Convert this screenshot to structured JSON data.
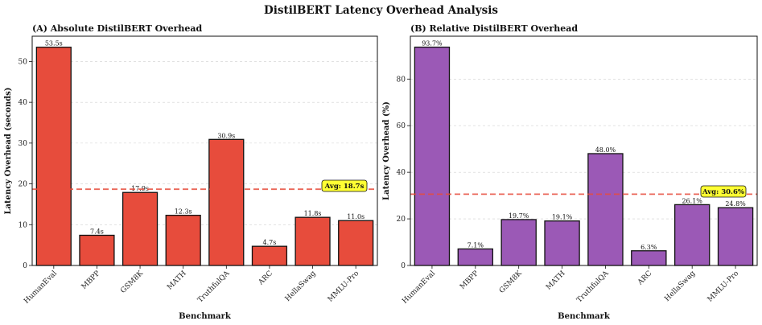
{
  "figure": {
    "title": "DistilBERT Latency Overhead Analysis"
  },
  "chart_data": [
    {
      "type": "bar",
      "title": "(A) Absolute DistilBERT Overhead",
      "xlabel": "Benchmark",
      "ylabel": "Latency Overhead (seconds)",
      "categories": [
        "HumanEval",
        "MBPP",
        "GSM8K",
        "MATH",
        "TruthfulQA",
        "ARC",
        "HellaSwag",
        "MMLU-Pro"
      ],
      "values": [
        53.5,
        7.4,
        17.9,
        12.3,
        30.9,
        4.7,
        11.8,
        11.0
      ],
      "labels": [
        "53.5s",
        "7.4s",
        "17.9s",
        "12.3s",
        "30.9s",
        "4.7s",
        "11.8s",
        "11.0s"
      ],
      "ylim": [
        0,
        56.2
      ],
      "yticks": [
        0,
        10,
        20,
        30,
        40,
        50
      ],
      "bar_color": "#e74c3c",
      "average": {
        "value": 18.7,
        "label": "Avg: 18.7s",
        "color": "#e74c3c"
      },
      "grid": "y-dashed"
    },
    {
      "type": "bar",
      "title": "(B) Relative DistilBERT Overhead",
      "xlabel": "Benchmark",
      "ylabel": "Latency Overhead (%)",
      "categories": [
        "HumanEval",
        "MBPP",
        "GSM8K",
        "MATH",
        "TruthfulQA",
        "ARC",
        "HellaSwag",
        "MMLU-Pro"
      ],
      "values": [
        93.7,
        7.1,
        19.7,
        19.1,
        48.0,
        6.3,
        26.1,
        24.8
      ],
      "labels": [
        "93.7%",
        "7.1%",
        "19.7%",
        "19.1%",
        "48.0%",
        "6.3%",
        "26.1%",
        "24.8%"
      ],
      "ylim": [
        0,
        98.4
      ],
      "yticks": [
        0,
        20,
        40,
        60,
        80
      ],
      "bar_color": "#9b59b6",
      "average": {
        "value": 30.6,
        "label": "Avg: 30.6%",
        "color": "#e74c3c"
      },
      "grid": "y-dashed"
    }
  ]
}
